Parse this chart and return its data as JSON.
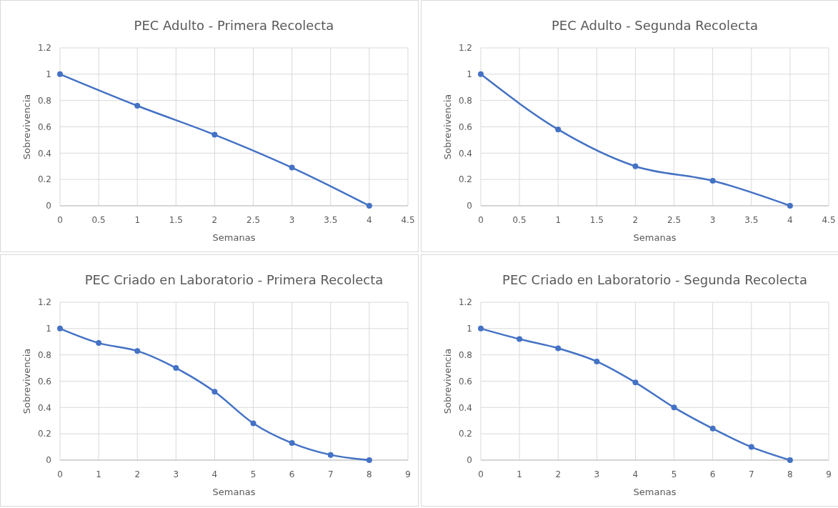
{
  "chart_data": [
    {
      "type": "line",
      "title": "PEC Adulto - Primera Recolecta",
      "xlabel": "Semanas",
      "ylabel": "Sobrevivencia",
      "x": [
        0,
        1,
        2,
        3,
        4
      ],
      "series": [
        {
          "color": "#4472c4",
          "values": [
            1,
            0.76,
            0.54,
            0.29,
            0
          ]
        }
      ],
      "xlim": [
        0,
        4.5
      ],
      "xticks": [
        0,
        0.5,
        1,
        1.5,
        2,
        2.5,
        3,
        3.5,
        4,
        4.5
      ],
      "ylim": [
        0,
        1.2
      ],
      "yticks": [
        0,
        0.2,
        0.4,
        0.6,
        0.8,
        1,
        1.2
      ],
      "grid": true,
      "marker": "circle",
      "line_style": "solid"
    },
    {
      "type": "line",
      "title": "PEC Adulto - Segunda Recolecta",
      "xlabel": "Semanas",
      "ylabel": "Sobrevivencia",
      "x": [
        0,
        1,
        2,
        3,
        4
      ],
      "series": [
        {
          "color": "#4472c4",
          "values": [
            1,
            0.58,
            0.3,
            0.19,
            0
          ]
        }
      ],
      "xlim": [
        0,
        4.5
      ],
      "xticks": [
        0,
        0.5,
        1,
        1.5,
        2,
        2.5,
        3,
        3.5,
        4,
        4.5
      ],
      "ylim": [
        0,
        1.2
      ],
      "yticks": [
        0,
        0.2,
        0.4,
        0.6,
        0.8,
        1,
        1.2
      ],
      "grid": true,
      "marker": "circle",
      "line_style": "solid"
    },
    {
      "type": "line",
      "title": "PEC Criado en Laboratorio - Primera Recolecta",
      "xlabel": "Semanas",
      "ylabel": "Sobrevivencia",
      "x": [
        0,
        1,
        2,
        3,
        4,
        5,
        6,
        7,
        8
      ],
      "series": [
        {
          "color": "#4472c4",
          "values": [
            1,
            0.89,
            0.83,
            0.7,
            0.52,
            0.28,
            0.13,
            0.04,
            0
          ]
        }
      ],
      "xlim": [
        0,
        9
      ],
      "xticks": [
        0,
        1,
        2,
        3,
        4,
        5,
        6,
        7,
        8,
        9
      ],
      "ylim": [
        0,
        1.2
      ],
      "yticks": [
        0,
        0.2,
        0.4,
        0.6,
        0.8,
        1,
        1.2
      ],
      "grid": true,
      "marker": "circle",
      "line_style": "solid"
    },
    {
      "type": "line",
      "title": "PEC Criado en Laboratorio - Segunda Recolecta",
      "xlabel": "Semanas",
      "ylabel": "Sobrevivencia",
      "x": [
        0,
        1,
        2,
        3,
        4,
        5,
        6,
        7,
        8
      ],
      "series": [
        {
          "color": "#4472c4",
          "values": [
            1,
            0.92,
            0.85,
            0.75,
            0.59,
            0.4,
            0.24,
            0.1,
            0
          ]
        }
      ],
      "xlim": [
        0,
        9
      ],
      "xticks": [
        0,
        1,
        2,
        3,
        4,
        5,
        6,
        7,
        8,
        9
      ],
      "ylim": [
        0,
        1.2
      ],
      "yticks": [
        0,
        0.2,
        0.4,
        0.6,
        0.8,
        1,
        1.2
      ],
      "grid": true,
      "marker": "circle",
      "line_style": "solid"
    }
  ]
}
